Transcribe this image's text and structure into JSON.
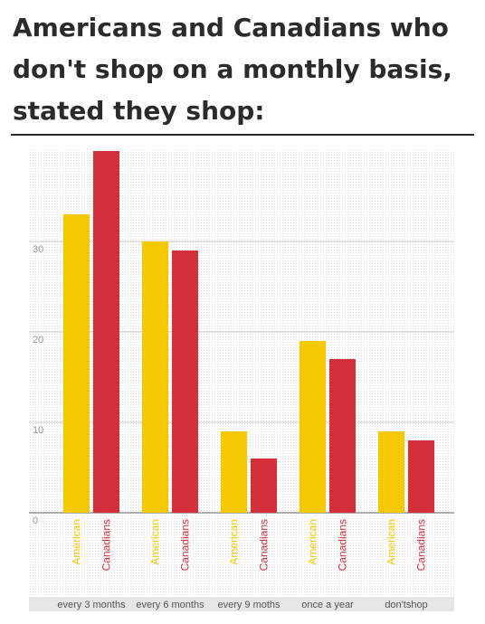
{
  "title": "Americans and Canadians who don't shop on a monthly basis, stated they shop:",
  "colors": {
    "american": "#f5c800",
    "canadian": "#d3303a",
    "grid": "#c8c8c8",
    "axis": "#666666"
  },
  "chart_data": {
    "type": "bar",
    "title": "Americans and Canadians who don't shop on a monthly basis, stated they shop:",
    "categories": [
      "every  3 months",
      "every  6 months",
      "every  9 moths",
      "once  a year",
      "don'tshop"
    ],
    "series": [
      {
        "name": "American",
        "values": [
          33,
          30,
          9,
          19,
          9
        ]
      },
      {
        "name": "Canadians",
        "values": [
          40,
          29,
          6,
          17,
          8
        ]
      }
    ],
    "yticks": [
      0,
      10,
      20,
      30
    ],
    "ylim": [
      0,
      40
    ],
    "grid": true,
    "legend": "bar-labels"
  }
}
